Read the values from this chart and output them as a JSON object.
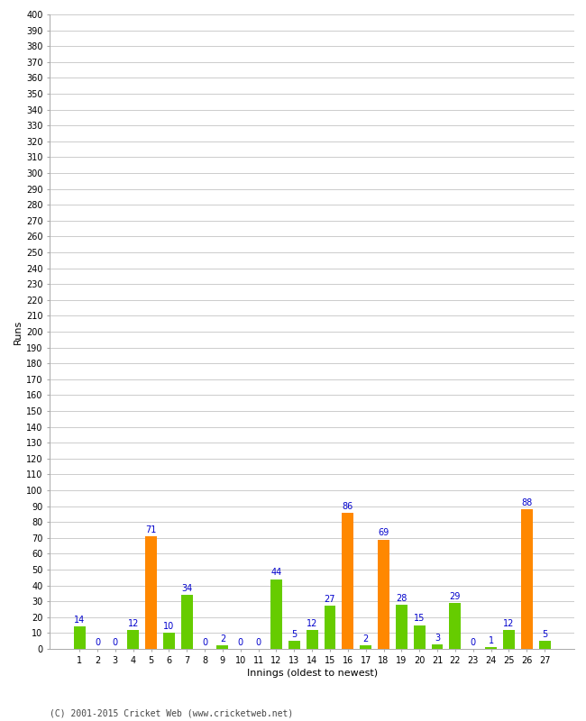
{
  "innings": [
    1,
    2,
    3,
    4,
    5,
    6,
    7,
    8,
    9,
    10,
    11,
    12,
    13,
    14,
    15,
    16,
    17,
    18,
    19,
    20,
    21,
    22,
    23,
    24,
    25,
    26,
    27
  ],
  "runs": [
    14,
    0,
    0,
    12,
    71,
    10,
    34,
    0,
    2,
    0,
    0,
    44,
    5,
    12,
    27,
    86,
    2,
    69,
    28,
    15,
    3,
    29,
    0,
    1,
    12,
    88,
    5
  ],
  "colors": [
    "#66cc00",
    "#66cc00",
    "#66cc00",
    "#66cc00",
    "#ff8800",
    "#66cc00",
    "#66cc00",
    "#66cc00",
    "#66cc00",
    "#66cc00",
    "#66cc00",
    "#66cc00",
    "#66cc00",
    "#66cc00",
    "#66cc00",
    "#ff8800",
    "#66cc00",
    "#ff8800",
    "#66cc00",
    "#66cc00",
    "#66cc00",
    "#66cc00",
    "#66cc00",
    "#66cc00",
    "#66cc00",
    "#ff8800",
    "#66cc00"
  ],
  "ylabel": "Runs",
  "xlabel": "Innings (oldest to newest)",
  "ylim": [
    0,
    400
  ],
  "yticks": [
    0,
    10,
    20,
    30,
    40,
    50,
    60,
    70,
    80,
    90,
    100,
    110,
    120,
    130,
    140,
    150,
    160,
    170,
    180,
    190,
    200,
    210,
    220,
    230,
    240,
    250,
    260,
    270,
    280,
    290,
    300,
    310,
    320,
    330,
    340,
    350,
    360,
    370,
    380,
    390,
    400
  ],
  "label_color": "#0000cc",
  "label_fontsize": 7,
  "axis_tick_fontsize": 7,
  "axis_label_fontsize": 8,
  "background_color": "#ffffff",
  "grid_color": "#cccccc",
  "footer": "(C) 2001-2015 Cricket Web (www.cricketweb.net)"
}
